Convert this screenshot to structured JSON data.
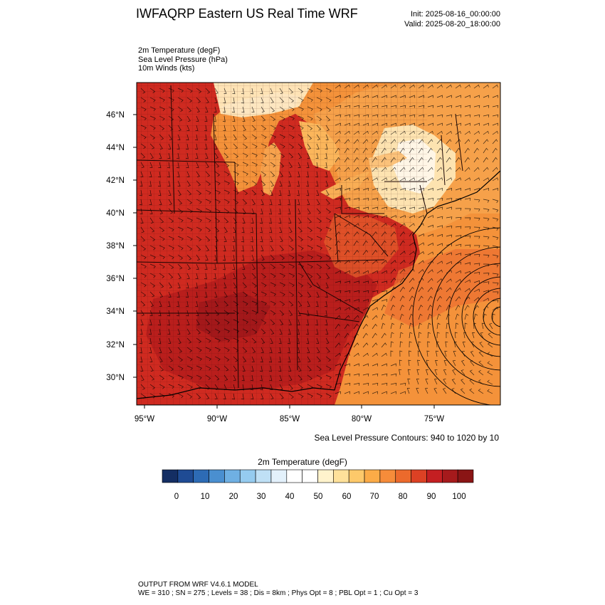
{
  "header": {
    "title": "IWFAQRP Eastern US Real Time WRF",
    "init": "Init: 2025-08-16_00:00:00",
    "valid": "Valid: 2025-08-20_18:00:00"
  },
  "fields": {
    "temperature": "2m Temperature   (degF)",
    "pressure": "Sea Level Pressure   (hPa)",
    "winds": "10m Winds   (kts)"
  },
  "axes": {
    "lat_labels": [
      "46°N",
      "44°N",
      "42°N",
      "40°N",
      "38°N",
      "36°N",
      "34°N",
      "32°N",
      "30°N"
    ],
    "lon_labels": [
      "95°W",
      "90°W",
      "85°W",
      "80°W",
      "75°W"
    ]
  },
  "contour_note": "Sea Level Pressure Contours: 940 to 1020 by 10",
  "colorbar": {
    "title": "2m Temperature  (degF)",
    "labels": [
      "0",
      "10",
      "20",
      "30",
      "40",
      "50",
      "60",
      "70",
      "80",
      "90",
      "100"
    ],
    "colors": [
      "#142e63",
      "#1f4b94",
      "#2d6bb5",
      "#4a8fd0",
      "#6fb0e3",
      "#95cbef",
      "#bfe0f5",
      "#e3f1fb",
      "#ffffff",
      "#ffffff",
      "#fff3cc",
      "#fee19a",
      "#fdc96a",
      "#fbab47",
      "#f68c3a",
      "#ec6a2c",
      "#dc4124",
      "#c41f22",
      "#a61a1c",
      "#8a1515"
    ]
  },
  "footer": {
    "line1": "OUTPUT FROM WRF V4.6.1 MODEL",
    "line2": "WE = 310 ; SN = 275 ; Levels = 38 ; Dis = 8km ; Phys Opt = 8 ; PBL Opt = 1 ; Cu Opt = 3"
  }
}
